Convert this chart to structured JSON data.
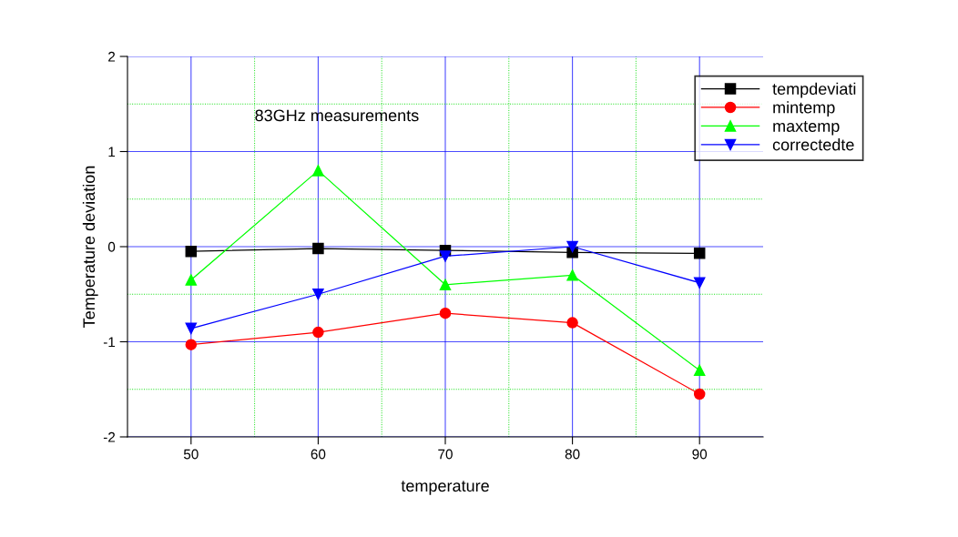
{
  "chart_data": {
    "type": "line",
    "xlabel": "temperature",
    "ylabel": "Temperature deviation",
    "annotations": [
      "83GHz measurements"
    ],
    "x": [
      50,
      60,
      70,
      80,
      90
    ],
    "series": [
      {
        "name": "tempdeviati",
        "color": "#000000",
        "marker": "square",
        "values": [
          -0.05,
          -0.02,
          -0.04,
          -0.06,
          -0.07
        ]
      },
      {
        "name": "mintemp",
        "color": "#ff0000",
        "marker": "circle",
        "values": [
          -1.03,
          -0.9,
          -0.7,
          -0.8,
          -1.55
        ]
      },
      {
        "name": "maxtemp",
        "color": "#00ff00",
        "marker": "triangle",
        "values": [
          -0.35,
          0.8,
          -0.4,
          -0.3,
          -1.3
        ]
      },
      {
        "name": "correctedte",
        "color": "#0000ff",
        "marker": "triangle_down",
        "values": [
          -0.86,
          -0.5,
          -0.1,
          0,
          -0.38
        ]
      }
    ],
    "xlim": [
      45,
      95
    ],
    "ylim": [
      -2,
      2
    ],
    "xticks": [
      50,
      {
        "value": 55,
        "label": null
      },
      60,
      {
        "value": 65,
        "label": null
      },
      70,
      {
        "value": 75,
        "label": null
      },
      80,
      {
        "value": 85,
        "label": null
      },
      90
    ],
    "yticks": [
      -2,
      {
        "value": -1.5,
        "label": null
      },
      -1,
      {
        "value": -0.5,
        "label": null
      },
      0,
      {
        "value": 0.5,
        "label": null
      },
      1,
      {
        "value": 1.5,
        "label": null
      },
      2
    ],
    "grid": true,
    "legend": "top right",
    "line_style": "solid"
  }
}
